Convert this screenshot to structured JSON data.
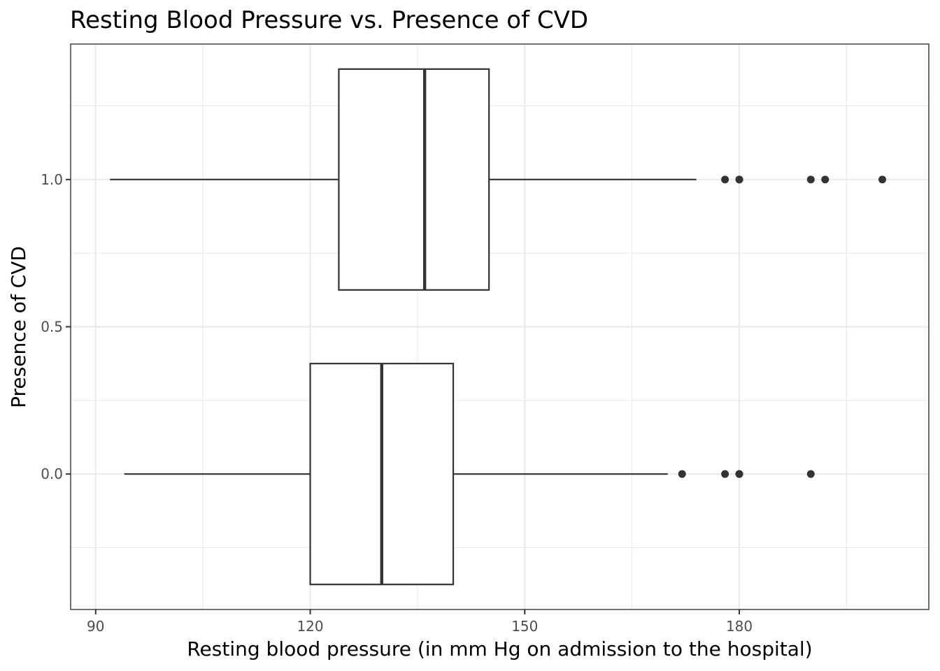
{
  "chart_data": {
    "type": "boxplot",
    "orientation": "horizontal",
    "title": "Resting Blood Pressure vs. Presence of CVD",
    "xlabel": "Resting blood pressure (in mm Hg on admission to the hospital)",
    "ylabel": "Presence of CVD",
    "xlim": [
      86.5,
      206.5
    ],
    "ylim": [
      -0.46,
      1.46
    ],
    "x_ticks": [
      90,
      120,
      150,
      180
    ],
    "x_tick_labels": [
      "90",
      "120",
      "150",
      "180"
    ],
    "x_minor_ticks": [
      105,
      135,
      165,
      195
    ],
    "y_ticks": [
      0.0,
      0.5,
      1.0
    ],
    "y_tick_labels": [
      "0.0",
      "0.5",
      "1.0"
    ],
    "y_minor_ticks": [
      -0.25,
      0.25,
      0.75,
      1.25
    ],
    "grid": true,
    "theme": "bw",
    "boxes": [
      {
        "y": 1.0,
        "width": 0.75,
        "whisker_low": 92,
        "q1": 124,
        "median": 136,
        "q3": 145,
        "whisker_high": 174,
        "outliers": [
          178,
          180,
          180,
          190,
          192,
          200
        ]
      },
      {
        "y": 0.0,
        "width": 0.75,
        "whisker_low": 94,
        "q1": 120,
        "median": 130,
        "q3": 140,
        "whisker_high": 170,
        "outliers": [
          172,
          178,
          180,
          180,
          190
        ]
      }
    ],
    "colors": {
      "box_stroke": "#333333",
      "box_fill": "#ffffff",
      "grid": "#ebebeb",
      "tick_text": "#4d4d4d"
    }
  }
}
